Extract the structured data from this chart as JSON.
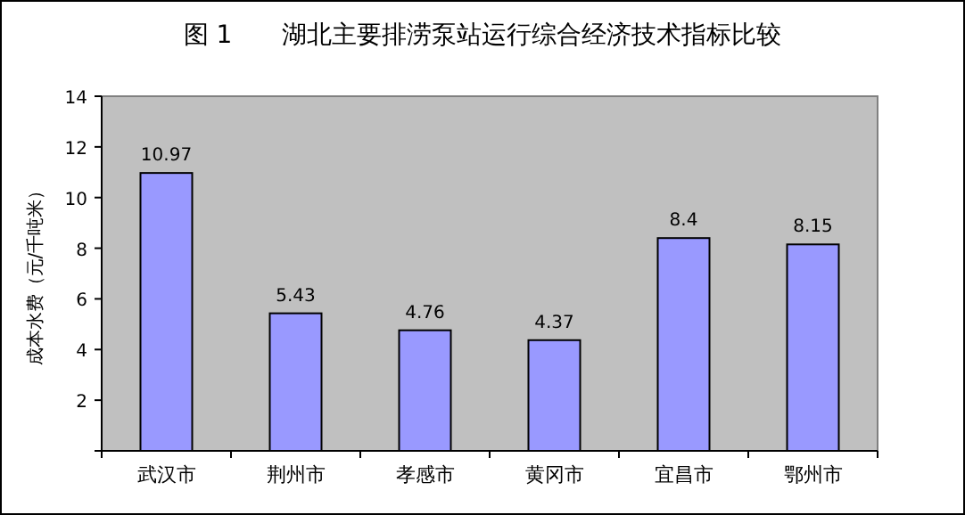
{
  "chart_data": {
    "type": "bar",
    "title": "图 1　　湖北主要排涝泵站运行综合经济技术指标比较",
    "ylabel": "成本水费（元/千吨米）",
    "categories": [
      "武汉市",
      "荆州市",
      "孝感市",
      "黄冈市",
      "宜昌市",
      "鄂州市"
    ],
    "values": [
      10.97,
      5.43,
      4.76,
      4.37,
      8.4,
      8.15
    ],
    "color": "#9999ff",
    "ylim": [
      0,
      14
    ],
    "yticks": [
      {
        "value": 0,
        "label": null
      },
      2,
      4,
      6,
      8,
      10,
      12,
      14
    ],
    "data_labels": true
  }
}
